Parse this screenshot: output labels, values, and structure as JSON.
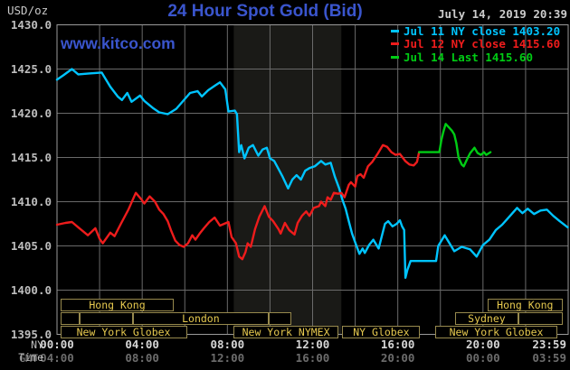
{
  "header": {
    "unit_label": "USD/oz",
    "title": "24 Hour Spot Gold (Bid)",
    "datetime": "July 14, 2019 20:39",
    "watermark": "www.kitco.com"
  },
  "axis_left_footer": {
    "ny_time": "NY Time",
    "gmt": "GMT"
  },
  "legend": {
    "items": [
      {
        "label": "Jul 11 NY close 1403.20",
        "color": "#00c4ff"
      },
      {
        "label": "Jul 12 NY close 1415.60",
        "color": "#ee1c1c"
      },
      {
        "label": "Jul 14 Last 1415.60",
        "color": "#00cc14"
      }
    ]
  },
  "colors": {
    "background": "#000000",
    "title_blue": "#3a55cd",
    "grid": "#6a6a6a",
    "plot_border": "#9a9a9a",
    "shaded_band": "#1a1a17",
    "session_border": "#97894d",
    "session_text": "#e6c94f"
  },
  "chart_data": {
    "type": "line",
    "title": "24 Hour Spot Gold (Bid)",
    "xlabel": "NY Time / GMT",
    "ylabel": "USD/oz",
    "x_axis": {
      "tick_hours": [
        0,
        4,
        8,
        12,
        16,
        20,
        24
      ],
      "ny_time_labels": [
        "00:00",
        "04:00",
        "08:00",
        "12:00",
        "16:00",
        "20:00",
        "23:59"
      ],
      "gmt_labels": [
        "04:00",
        "08:00",
        "12:00",
        "16:00",
        "20:00",
        "00:00",
        "03:59"
      ],
      "grid_step_hours": 2,
      "range_hours": [
        0,
        24
      ]
    },
    "y_axis": {
      "min": 1395,
      "max": 1430,
      "step": 5,
      "label_format": "x.1f"
    },
    "shaded_region": {
      "start_h": 8.3,
      "end_h": 13.35
    },
    "series": [
      {
        "name": "Jul 11",
        "color": "#00c4ff",
        "points": [
          [
            0,
            1423.8
          ],
          [
            0.3,
            1424.3
          ],
          [
            0.7,
            1425.0
          ],
          [
            1.0,
            1424.4
          ],
          [
            1.5,
            1424.5
          ],
          [
            2.1,
            1424.6
          ],
          [
            2.5,
            1423.0
          ],
          [
            2.85,
            1421.9
          ],
          [
            3.05,
            1421.5
          ],
          [
            3.3,
            1422.3
          ],
          [
            3.5,
            1421.3
          ],
          [
            3.9,
            1422.0
          ],
          [
            4.1,
            1421.4
          ],
          [
            4.5,
            1420.6
          ],
          [
            4.8,
            1420.1
          ],
          [
            5.2,
            1419.9
          ],
          [
            5.6,
            1420.5
          ],
          [
            6.25,
            1422.3
          ],
          [
            6.6,
            1422.5
          ],
          [
            6.8,
            1421.9
          ],
          [
            7.1,
            1422.6
          ],
          [
            7.4,
            1423.1
          ],
          [
            7.65,
            1423.5
          ],
          [
            7.9,
            1422.7
          ],
          [
            8.05,
            1420.2
          ],
          [
            8.35,
            1420.3
          ],
          [
            8.45,
            1419.9
          ],
          [
            8.55,
            1415.6
          ],
          [
            8.65,
            1416.4
          ],
          [
            8.8,
            1414.9
          ],
          [
            9.0,
            1416.1
          ],
          [
            9.2,
            1416.4
          ],
          [
            9.45,
            1415.2
          ],
          [
            9.65,
            1415.9
          ],
          [
            9.85,
            1416.1
          ],
          [
            10.0,
            1414.9
          ],
          [
            10.2,
            1414.6
          ],
          [
            10.4,
            1413.7
          ],
          [
            10.6,
            1412.8
          ],
          [
            10.85,
            1411.5
          ],
          [
            11.05,
            1412.5
          ],
          [
            11.25,
            1413.0
          ],
          [
            11.45,
            1412.5
          ],
          [
            11.65,
            1413.5
          ],
          [
            11.85,
            1413.8
          ],
          [
            12.1,
            1414.0
          ],
          [
            12.4,
            1414.6
          ],
          [
            12.6,
            1414.2
          ],
          [
            12.85,
            1414.4
          ],
          [
            13.05,
            1412.8
          ],
          [
            13.25,
            1411.5
          ],
          [
            13.4,
            1410.2
          ],
          [
            13.55,
            1409.2
          ],
          [
            13.7,
            1407.8
          ],
          [
            13.85,
            1406.4
          ],
          [
            14.0,
            1405.4
          ],
          [
            14.2,
            1404.1
          ],
          [
            14.35,
            1404.7
          ],
          [
            14.45,
            1404.2
          ],
          [
            14.65,
            1405.1
          ],
          [
            14.85,
            1405.7
          ],
          [
            15.1,
            1404.7
          ],
          [
            15.4,
            1407.5
          ],
          [
            15.55,
            1407.8
          ],
          [
            15.75,
            1407.2
          ],
          [
            15.95,
            1407.5
          ],
          [
            16.1,
            1407.9
          ],
          [
            16.2,
            1407.2
          ],
          [
            16.3,
            1406.8
          ],
          [
            16.36,
            1401.4
          ],
          [
            16.45,
            1402.3
          ],
          [
            16.6,
            1403.3
          ],
          [
            17.8,
            1403.3
          ],
          [
            17.9,
            1405.0
          ],
          [
            18.2,
            1406.2
          ],
          [
            18.65,
            1404.4
          ],
          [
            19.0,
            1404.9
          ],
          [
            19.4,
            1404.6
          ],
          [
            19.7,
            1403.8
          ],
          [
            20.0,
            1405.1
          ],
          [
            20.3,
            1405.7
          ],
          [
            20.6,
            1406.8
          ],
          [
            20.9,
            1407.4
          ],
          [
            21.2,
            1408.2
          ],
          [
            21.6,
            1409.3
          ],
          [
            21.85,
            1408.7
          ],
          [
            22.1,
            1409.2
          ],
          [
            22.4,
            1408.6
          ],
          [
            22.7,
            1409.0
          ],
          [
            23.0,
            1409.1
          ],
          [
            23.3,
            1408.4
          ],
          [
            23.6,
            1407.8
          ],
          [
            23.98,
            1407.1
          ]
        ]
      },
      {
        "name": "Jul 12",
        "color": "#ee1c1c",
        "points": [
          [
            0,
            1407.4
          ],
          [
            0.4,
            1407.6
          ],
          [
            0.7,
            1407.7
          ],
          [
            1.05,
            1407.0
          ],
          [
            1.45,
            1406.2
          ],
          [
            1.8,
            1407.0
          ],
          [
            2.0,
            1405.8
          ],
          [
            2.15,
            1405.3
          ],
          [
            2.5,
            1406.5
          ],
          [
            2.7,
            1406.1
          ],
          [
            3.0,
            1407.5
          ],
          [
            3.35,
            1409.1
          ],
          [
            3.7,
            1411.0
          ],
          [
            3.95,
            1410.3
          ],
          [
            4.1,
            1409.8
          ],
          [
            4.35,
            1410.6
          ],
          [
            4.6,
            1410.0
          ],
          [
            4.8,
            1409.1
          ],
          [
            5.0,
            1408.6
          ],
          [
            5.2,
            1407.8
          ],
          [
            5.35,
            1406.8
          ],
          [
            5.55,
            1405.6
          ],
          [
            5.75,
            1405.1
          ],
          [
            5.95,
            1404.9
          ],
          [
            6.15,
            1405.3
          ],
          [
            6.35,
            1406.2
          ],
          [
            6.5,
            1405.7
          ],
          [
            6.7,
            1406.4
          ],
          [
            6.9,
            1407.0
          ],
          [
            7.15,
            1407.7
          ],
          [
            7.4,
            1408.2
          ],
          [
            7.65,
            1407.3
          ],
          [
            7.85,
            1407.5
          ],
          [
            8.05,
            1407.7
          ],
          [
            8.2,
            1406.0
          ],
          [
            8.4,
            1405.3
          ],
          [
            8.55,
            1403.8
          ],
          [
            8.7,
            1403.5
          ],
          [
            8.85,
            1404.3
          ],
          [
            8.95,
            1405.3
          ],
          [
            9.1,
            1404.9
          ],
          [
            9.3,
            1406.9
          ],
          [
            9.5,
            1408.3
          ],
          [
            9.75,
            1409.5
          ],
          [
            9.95,
            1408.3
          ],
          [
            10.15,
            1407.8
          ],
          [
            10.4,
            1406.9
          ],
          [
            10.5,
            1406.4
          ],
          [
            10.7,
            1407.6
          ],
          [
            10.9,
            1406.8
          ],
          [
            11.15,
            1406.3
          ],
          [
            11.3,
            1407.6
          ],
          [
            11.5,
            1408.4
          ],
          [
            11.7,
            1408.9
          ],
          [
            11.85,
            1408.4
          ],
          [
            12.05,
            1409.3
          ],
          [
            12.3,
            1409.5
          ],
          [
            12.4,
            1410.0
          ],
          [
            12.6,
            1409.5
          ],
          [
            12.7,
            1410.5
          ],
          [
            12.85,
            1410.2
          ],
          [
            13.0,
            1411.0
          ],
          [
            13.2,
            1410.9
          ],
          [
            13.35,
            1411.0
          ],
          [
            13.5,
            1410.5
          ],
          [
            13.7,
            1411.9
          ],
          [
            13.8,
            1412.2
          ],
          [
            14.0,
            1411.7
          ],
          [
            14.1,
            1412.9
          ],
          [
            14.25,
            1413.1
          ],
          [
            14.4,
            1412.7
          ],
          [
            14.6,
            1414.0
          ],
          [
            14.8,
            1414.5
          ],
          [
            15.05,
            1415.4
          ],
          [
            15.3,
            1416.4
          ],
          [
            15.5,
            1416.2
          ],
          [
            15.7,
            1415.6
          ],
          [
            15.9,
            1415.3
          ],
          [
            16.1,
            1415.4
          ],
          [
            16.35,
            1414.6
          ],
          [
            16.55,
            1414.2
          ],
          [
            16.75,
            1414.1
          ],
          [
            16.9,
            1414.5
          ],
          [
            17.0,
            1415.6
          ]
        ]
      },
      {
        "name": "Jul 14",
        "color": "#00cc14",
        "points": [
          [
            17.0,
            1415.6
          ],
          [
            17.95,
            1415.6
          ],
          [
            18.05,
            1417.0
          ],
          [
            18.15,
            1418.0
          ],
          [
            18.25,
            1418.8
          ],
          [
            18.4,
            1418.4
          ],
          [
            18.55,
            1418.0
          ],
          [
            18.65,
            1417.6
          ],
          [
            18.75,
            1416.6
          ],
          [
            18.85,
            1415.0
          ],
          [
            19.0,
            1414.2
          ],
          [
            19.1,
            1414.0
          ],
          [
            19.25,
            1414.8
          ],
          [
            19.4,
            1415.5
          ],
          [
            19.6,
            1416.1
          ],
          [
            19.75,
            1415.5
          ],
          [
            19.9,
            1415.3
          ],
          [
            20.05,
            1415.6
          ],
          [
            20.15,
            1415.3
          ],
          [
            20.35,
            1415.6
          ]
        ]
      }
    ]
  },
  "sessions": {
    "rows": [
      [
        {
          "start_h": 0.15,
          "end_h": 5.5,
          "label": "Hong Kong"
        },
        {
          "start_h": 20.2,
          "end_h": 23.75,
          "label": "Hong Kong"
        }
      ],
      [
        {
          "start_h": 0.15,
          "end_h": 1.05,
          "label": ""
        },
        {
          "start_h": 1.05,
          "end_h": 3.55,
          "label": ""
        },
        {
          "start_h": 3.55,
          "end_h": 9.95,
          "label": "London"
        },
        {
          "start_h": 9.95,
          "end_h": 11.0,
          "label": ""
        },
        {
          "start_h": 18.7,
          "end_h": 21.65,
          "label": "Sydney"
        },
        {
          "start_h": 21.65,
          "end_h": 23.75,
          "label": ""
        }
      ],
      [
        {
          "start_h": 0.15,
          "end_h": 6.1,
          "label": "New York Globex"
        },
        {
          "start_h": 8.3,
          "end_h": 13.2,
          "label": "New York NYMEX"
        },
        {
          "start_h": 13.4,
          "end_h": 17.05,
          "label": "NY Globex"
        },
        {
          "start_h": 17.75,
          "end_h": 23.5,
          "label": "New York Globex"
        }
      ]
    ]
  }
}
